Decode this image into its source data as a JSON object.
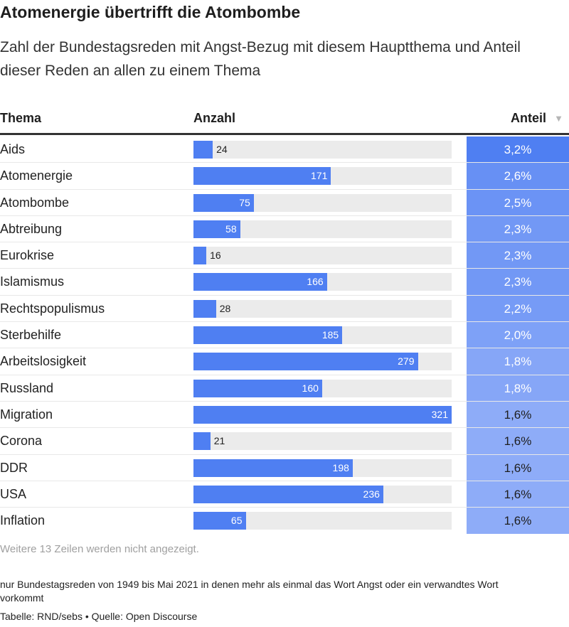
{
  "title": "Atomenergie übertrifft die Atombombe",
  "subtitle": "Zahl der Bundestagsreden mit Angst-Bezug mit diesem Hauptthema und Anteil dieser Reden an allen zu einem Thema",
  "table": {
    "col_thema": "Thema",
    "col_anzahl": "Anzahl",
    "col_anteil": "Anteil",
    "sort_icon": "▼"
  },
  "colors": {
    "bar": "#4f7ff2",
    "anteil_high": "#4f7ff2",
    "anteil_low": "#8eacf8"
  },
  "chart_data": {
    "type": "table",
    "columns": [
      "Thema",
      "Anzahl",
      "Anteil"
    ],
    "max_count": 321,
    "rows": [
      {
        "thema": "Aids",
        "anzahl": 24,
        "anteil": "3,2%",
        "anteil_value": 3.2
      },
      {
        "thema": "Atomenergie",
        "anzahl": 171,
        "anteil": "2,6%",
        "anteil_value": 2.6
      },
      {
        "thema": "Atombombe",
        "anzahl": 75,
        "anteil": "2,5%",
        "anteil_value": 2.5
      },
      {
        "thema": "Abtreibung",
        "anzahl": 58,
        "anteil": "2,3%",
        "anteil_value": 2.3
      },
      {
        "thema": "Eurokrise",
        "anzahl": 16,
        "anteil": "2,3%",
        "anteil_value": 2.3
      },
      {
        "thema": "Islamismus",
        "anzahl": 166,
        "anteil": "2,3%",
        "anteil_value": 2.3
      },
      {
        "thema": "Rechtspopulismus",
        "anzahl": 28,
        "anteil": "2,2%",
        "anteil_value": 2.2
      },
      {
        "thema": "Sterbehilfe",
        "anzahl": 185,
        "anteil": "2,0%",
        "anteil_value": 2.0
      },
      {
        "thema": "Arbeitslosigkeit",
        "anzahl": 279,
        "anteil": "1,8%",
        "anteil_value": 1.8
      },
      {
        "thema": "Russland",
        "anzahl": 160,
        "anteil": "1,8%",
        "anteil_value": 1.8
      },
      {
        "thema": "Migration",
        "anzahl": 321,
        "anteil": "1,6%",
        "anteil_value": 1.6
      },
      {
        "thema": "Corona",
        "anzahl": 21,
        "anteil": "1,6%",
        "anteil_value": 1.6
      },
      {
        "thema": "DDR",
        "anzahl": 198,
        "anteil": "1,6%",
        "anteil_value": 1.6
      },
      {
        "thema": "USA",
        "anzahl": 236,
        "anteil": "1,6%",
        "anteil_value": 1.6
      },
      {
        "thema": "Inflation",
        "anzahl": 65,
        "anteil": "1,6%",
        "anteil_value": 1.6
      }
    ]
  },
  "more_rows_text": "Weitere 13 Zeilen werden nicht angezeigt.",
  "note": "nur Bundestagsreden von 1949 bis Mai 2021 in denen mehr als einmal das Wort Angst oder ein verwandtes Wort vorkommt",
  "credit": "Tabelle: RND/sebs • Quelle: Open Discourse"
}
